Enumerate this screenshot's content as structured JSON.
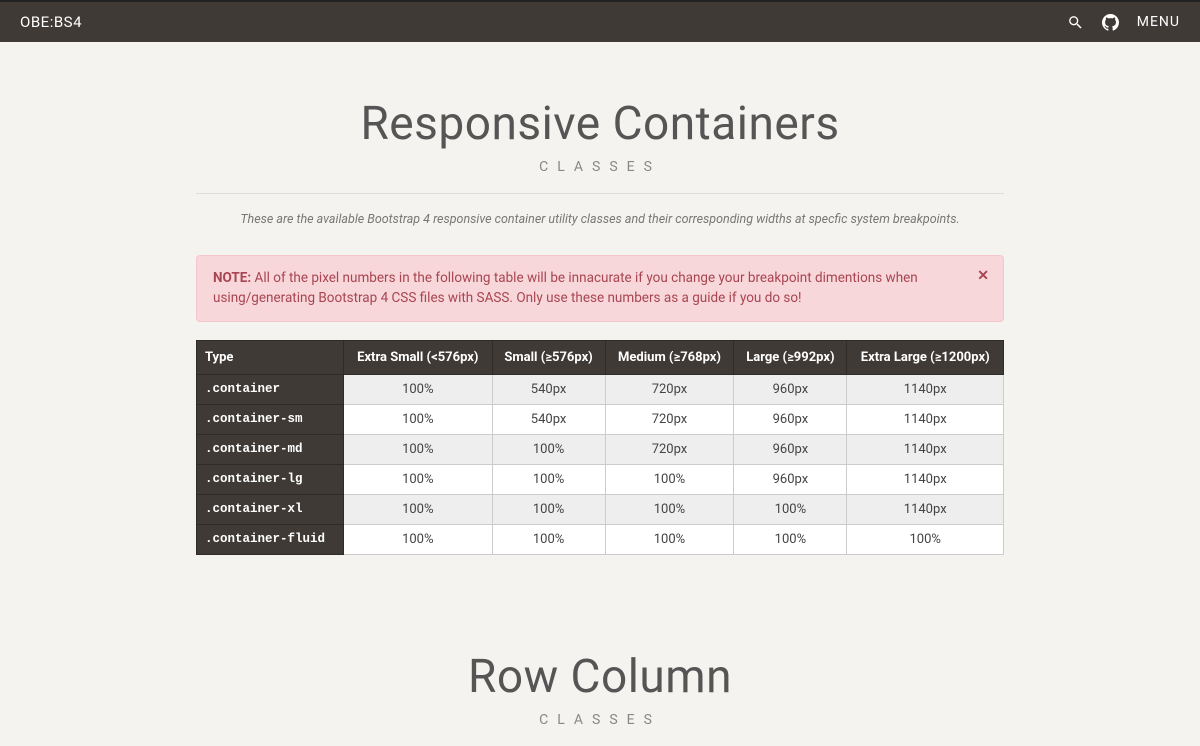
{
  "header": {
    "brand": "OBE:BS4",
    "menu_label": "MENU"
  },
  "section1": {
    "title": "Responsive Containers",
    "subtitle": "CLASSES",
    "intro": "These are the available Bootstrap 4 responsive container utility classes and their corresponding widths at specfic system breakpoints.",
    "alert": {
      "label": "NOTE:",
      "text": " All of the pixel numbers in the following table will be innacurate if you change your breakpoint dimentions when using/generating Bootstrap 4 CSS files with SASS. Only use these numbers as a guide if you do so!"
    },
    "table": {
      "columns": [
        "Type",
        "Extra Small (<576px)",
        "Small (≥576px)",
        "Medium (≥768px)",
        "Large (≥992px)",
        "Extra Large (≥1200px)"
      ],
      "rows": [
        [
          ".container",
          "100%",
          "540px",
          "720px",
          "960px",
          "1140px"
        ],
        [
          ".container-sm",
          "100%",
          "540px",
          "720px",
          "960px",
          "1140px"
        ],
        [
          ".container-md",
          "100%",
          "100%",
          "720px",
          "960px",
          "1140px"
        ],
        [
          ".container-lg",
          "100%",
          "100%",
          "100%",
          "960px",
          "1140px"
        ],
        [
          ".container-xl",
          "100%",
          "100%",
          "100%",
          "100%",
          "1140px"
        ],
        [
          ".container-fluid",
          "100%",
          "100%",
          "100%",
          "100%",
          "100%"
        ]
      ],
      "colors": {
        "header_bg": "#3f3a36",
        "header_fg": "#ffffff",
        "row_odd_bg": "#eeeeee",
        "row_even_bg": "#ffffff",
        "first_col_bg": "#3f3a36",
        "first_col_fg": "#ffffff",
        "border": "#cccccc"
      }
    }
  },
  "section2": {
    "title": "Row Column",
    "subtitle": "CLASSES"
  },
  "colors": {
    "page_bg": "#f5f3ef",
    "topbar_bg": "#3f3a36",
    "alert_bg": "#f8d7da",
    "alert_border": "#f5c6cb",
    "alert_fg": "#a84551"
  }
}
